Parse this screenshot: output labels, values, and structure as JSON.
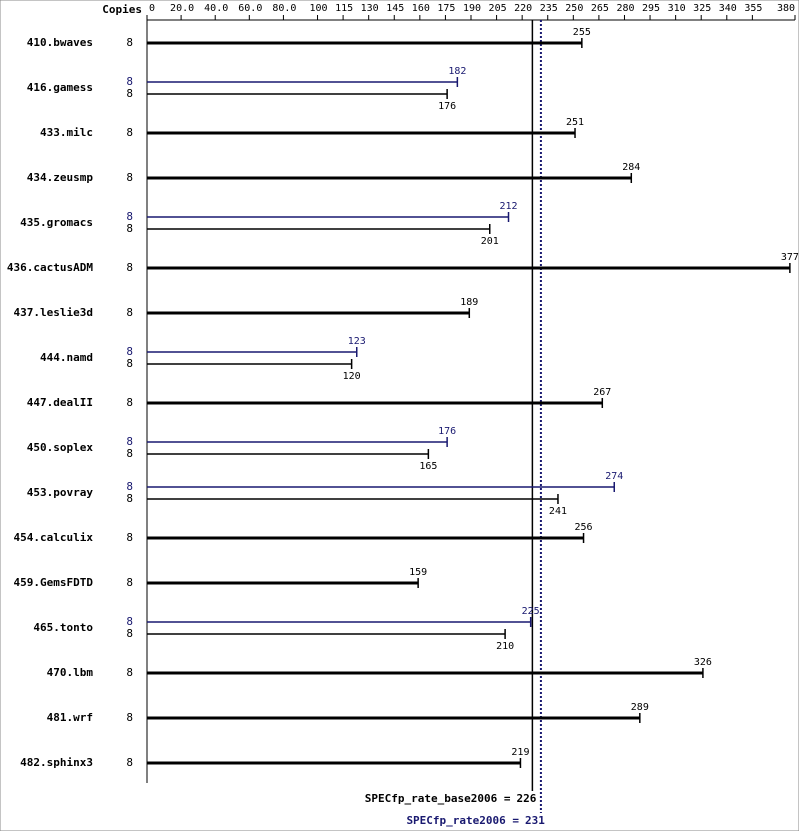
{
  "chart_data": {
    "type": "bar",
    "orientation": "horizontal",
    "copies_header": "Copies",
    "categories": [
      "410.bwaves",
      "416.gamess",
      "433.milc",
      "434.zeusmp",
      "435.gromacs",
      "436.cactusADM",
      "437.leslie3d",
      "444.namd",
      "447.dealII",
      "450.soplex",
      "453.povray",
      "454.calculix",
      "459.GemsFDTD",
      "465.tonto",
      "470.lbm",
      "481.wrf",
      "482.sphinx3"
    ],
    "series": [
      {
        "color": "#000000",
        "values": [
          255,
          176,
          251,
          284,
          201,
          377,
          189,
          120,
          267,
          165,
          241,
          256,
          159,
          210,
          326,
          289,
          219
        ],
        "copies": [
          8,
          8,
          8,
          8,
          8,
          8,
          8,
          8,
          8,
          8,
          8,
          8,
          8,
          8,
          8,
          8,
          8
        ]
      },
      {
        "color": "#191970",
        "values": [
          null,
          182,
          null,
          null,
          212,
          null,
          null,
          123,
          null,
          176,
          274,
          null,
          null,
          225,
          null,
          null,
          null
        ],
        "copies": [
          null,
          8,
          null,
          null,
          8,
          null,
          null,
          8,
          null,
          8,
          8,
          null,
          null,
          8,
          null,
          null,
          null
        ]
      }
    ],
    "xlim": [
      0,
      380
    ],
    "xticks": [
      0,
      {
        "value": 20,
        "label": "20.0"
      },
      {
        "value": 40,
        "label": "40.0"
      },
      {
        "value": 60,
        "label": "60.0"
      },
      {
        "value": 80,
        "label": "80.0"
      },
      100,
      115,
      130,
      145,
      160,
      175,
      190,
      205,
      220,
      235,
      250,
      265,
      280,
      295,
      310,
      325,
      340,
      355,
      380
    ],
    "reference_lines": [
      {
        "label": "SPECfp_rate_base2006 =",
        "value": 226,
        "color": "#000000",
        "style": "solid"
      },
      {
        "label": "SPECfp_rate2006 =",
        "value": 231,
        "color": "#191970",
        "style": "dotted"
      }
    ]
  }
}
